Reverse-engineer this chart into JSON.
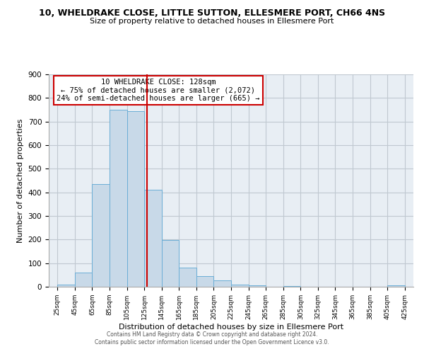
{
  "title": "10, WHELDRAKE CLOSE, LITTLE SUTTON, ELLESMERE PORT, CH66 4NS",
  "subtitle": "Size of property relative to detached houses in Ellesmere Port",
  "xlabel": "Distribution of detached houses by size in Ellesmere Port",
  "ylabel": "Number of detached properties",
  "bin_edges": [
    25,
    45,
    65,
    85,
    105,
    125,
    145,
    165,
    185,
    205,
    225,
    245,
    265,
    285,
    305,
    325,
    345,
    365,
    385,
    405,
    425
  ],
  "bar_heights": [
    10,
    60,
    435,
    750,
    745,
    410,
    197,
    80,
    45,
    28,
    10,
    5,
    0,
    3,
    0,
    0,
    0,
    0,
    0,
    5
  ],
  "bar_color": "#c8d9e8",
  "bar_edgecolor": "#6baed6",
  "vline_x": 128,
  "vline_color": "#cc0000",
  "ylim": [
    0,
    900
  ],
  "yticks": [
    0,
    100,
    200,
    300,
    400,
    500,
    600,
    700,
    800,
    900
  ],
  "annotation_title": "10 WHELDRAKE CLOSE: 128sqm",
  "annotation_line1": "← 75% of detached houses are smaller (2,072)",
  "annotation_line2": "24% of semi-detached houses are larger (665) →",
  "annotation_box_color": "#ffffff",
  "annotation_box_edgecolor": "#cc0000",
  "footer1": "Contains HM Land Registry data © Crown copyright and database right 2024.",
  "footer2": "Contains public sector information licensed under the Open Government Licence v3.0.",
  "background_color": "#ffffff",
  "plot_bg_color": "#e8eef4",
  "grid_color": "#c0c8d0"
}
